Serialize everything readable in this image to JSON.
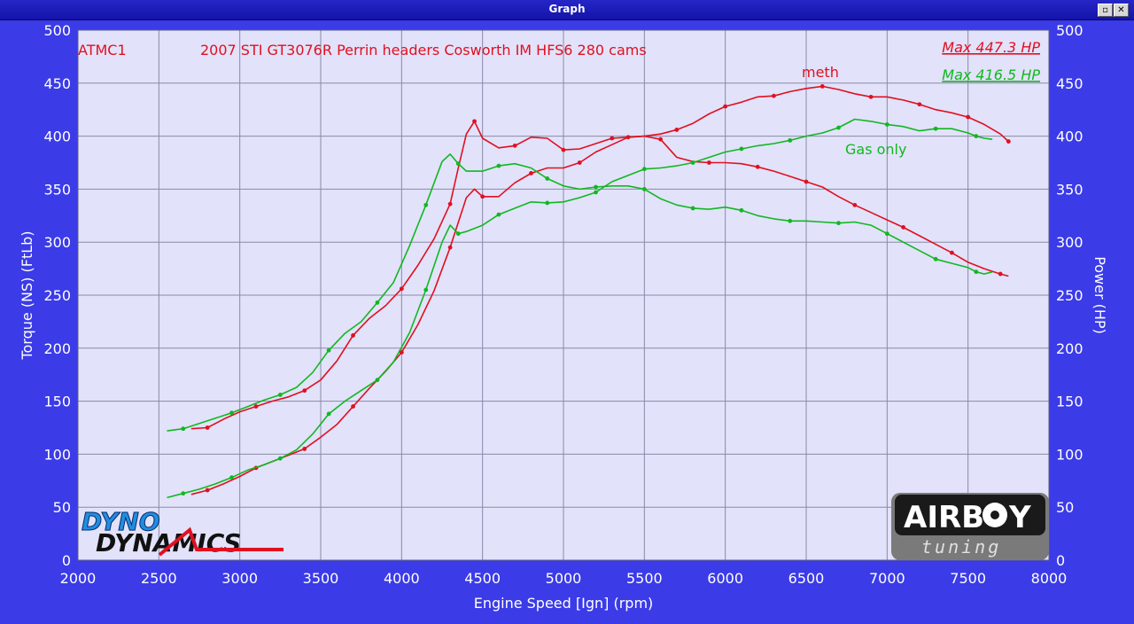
{
  "window": {
    "title": "Graph",
    "restore_icon": "restore-icon",
    "close_icon": "close-icon"
  },
  "colors": {
    "background": "#3b3be8",
    "plot_bg": "#e2e2fa",
    "grid": "#8a8aa8",
    "meth": "#e01020",
    "gas": "#10b820"
  },
  "chart_data": {
    "type": "line",
    "title": "2007 STI GT3076R Perrin headers Cosworth IM HFS6 280 cams",
    "run_label": "ATMC1",
    "xlabel": "Engine Speed [Ign] (rpm)",
    "ylabel_left": "Torque (NS) (FtLb)",
    "ylabel_right": "Power (HP)",
    "xlim": [
      2000,
      8000
    ],
    "ylim": [
      0,
      500
    ],
    "x_ticks": [
      "2000",
      "2500",
      "3000",
      "3500",
      "4000",
      "4500",
      "5000",
      "5500",
      "6000",
      "6500",
      "7000",
      "7500",
      "8000"
    ],
    "y_ticks": [
      "0",
      "50",
      "100",
      "150",
      "200",
      "250",
      "300",
      "350",
      "400",
      "450",
      "500"
    ],
    "grid": true,
    "legend": [
      {
        "label": "Max 447.3 HP",
        "series": "meth"
      },
      {
        "label": "Max 416.5 HP",
        "series": "gas"
      }
    ],
    "annotations": [
      {
        "text": "meth",
        "series": "meth"
      },
      {
        "text": "Gas only",
        "series": "gas"
      }
    ],
    "series": [
      {
        "name": "meth",
        "quantity": "torque",
        "color": "#e01020",
        "x": [
          2700,
          2800,
          2900,
          3000,
          3100,
          3200,
          3300,
          3400,
          3500,
          3600,
          3700,
          3800,
          3900,
          4000,
          4100,
          4200,
          4300,
          4350,
          4400,
          4450,
          4500,
          4600,
          4700,
          4800,
          4900,
          5000,
          5100,
          5200,
          5300,
          5400,
          5500,
          5600,
          5700,
          5800,
          5900,
          6000,
          6100,
          6200,
          6300,
          6400,
          6500,
          6600,
          6700,
          6800,
          6900,
          7000,
          7100,
          7200,
          7300,
          7400,
          7500,
          7600,
          7700,
          7750
        ],
        "y": [
          124,
          125,
          133,
          140,
          145,
          150,
          154,
          160,
          170,
          188,
          212,
          228,
          240,
          256,
          278,
          303,
          336,
          370,
          402,
          414,
          398,
          389,
          391,
          399,
          398,
          387,
          388,
          393,
          398,
          399,
          400,
          397,
          380,
          376,
          375,
          375,
          374,
          371,
          367,
          362,
          357,
          352,
          343,
          335,
          328,
          321,
          314,
          306,
          298,
          290,
          281,
          275,
          270,
          268
        ]
      },
      {
        "name": "meth",
        "quantity": "power",
        "color": "#e01020",
        "x": [
          2700,
          2800,
          2900,
          3000,
          3100,
          3200,
          3300,
          3400,
          3500,
          3600,
          3700,
          3800,
          3900,
          4000,
          4100,
          4200,
          4300,
          4400,
          4450,
          4500,
          4600,
          4700,
          4800,
          4900,
          5000,
          5100,
          5200,
          5300,
          5400,
          5500,
          5600,
          5700,
          5800,
          5900,
          6000,
          6100,
          6200,
          6300,
          6400,
          6500,
          6600,
          6700,
          6800,
          6900,
          7000,
          7100,
          7200,
          7300,
          7400,
          7500,
          7600,
          7700,
          7750
        ],
        "y": [
          62,
          66,
          72,
          79,
          87,
          93,
          99,
          105,
          116,
          128,
          145,
          162,
          178,
          196,
          222,
          254,
          295,
          342,
          350,
          343,
          343,
          356,
          365,
          370,
          370,
          375,
          385,
          392,
          399,
          400,
          402,
          406,
          412,
          421,
          428,
          432,
          437,
          438,
          442,
          445,
          447,
          444,
          440,
          437,
          437,
          434,
          430,
          425,
          422,
          418,
          411,
          402,
          395
        ]
      },
      {
        "name": "gas",
        "quantity": "torque",
        "color": "#10b820",
        "x": [
          2550,
          2650,
          2750,
          2850,
          2950,
          3050,
          3150,
          3250,
          3350,
          3450,
          3550,
          3650,
          3750,
          3850,
          3950,
          4050,
          4150,
          4250,
          4300,
          4350,
          4400,
          4500,
          4600,
          4700,
          4800,
          4900,
          5000,
          5100,
          5200,
          5300,
          5400,
          5500,
          5600,
          5700,
          5800,
          5900,
          6000,
          6100,
          6200,
          6300,
          6400,
          6500,
          6600,
          6700,
          6800,
          6900,
          7000,
          7100,
          7200,
          7300,
          7400,
          7500,
          7550,
          7600,
          7650
        ],
        "y": [
          122,
          124,
          129,
          134,
          139,
          145,
          151,
          156,
          163,
          177,
          198,
          214,
          225,
          243,
          262,
          297,
          335,
          376,
          383,
          374,
          367,
          367,
          372,
          374,
          370,
          360,
          353,
          350,
          352,
          353,
          353,
          350,
          341,
          335,
          332,
          331,
          333,
          330,
          325,
          322,
          320,
          320,
          319,
          318,
          319,
          316,
          308,
          300,
          292,
          284,
          280,
          276,
          272,
          270,
          272
        ]
      },
      {
        "name": "gas",
        "quantity": "power",
        "color": "#10b820",
        "x": [
          2550,
          2650,
          2750,
          2850,
          2950,
          3050,
          3150,
          3250,
          3350,
          3450,
          3550,
          3650,
          3750,
          3850,
          3950,
          4050,
          4150,
          4250,
          4300,
          4350,
          4400,
          4500,
          4600,
          4700,
          4800,
          4900,
          5000,
          5100,
          5200,
          5300,
          5400,
          5500,
          5600,
          5700,
          5800,
          5900,
          6000,
          6100,
          6200,
          6300,
          6400,
          6500,
          6600,
          6700,
          6800,
          6900,
          7000,
          7100,
          7200,
          7300,
          7400,
          7500,
          7550,
          7600,
          7650
        ],
        "y": [
          59,
          63,
          67,
          72,
          78,
          85,
          90,
          96,
          104,
          119,
          138,
          150,
          160,
          170,
          187,
          215,
          255,
          300,
          316,
          308,
          310,
          316,
          326,
          332,
          338,
          337,
          338,
          342,
          347,
          357,
          363,
          369,
          370,
          372,
          375,
          380,
          385,
          388,
          391,
          393,
          396,
          400,
          403,
          408,
          416,
          414,
          411,
          409,
          405,
          407,
          407,
          403,
          400,
          398,
          397
        ]
      }
    ]
  }
}
